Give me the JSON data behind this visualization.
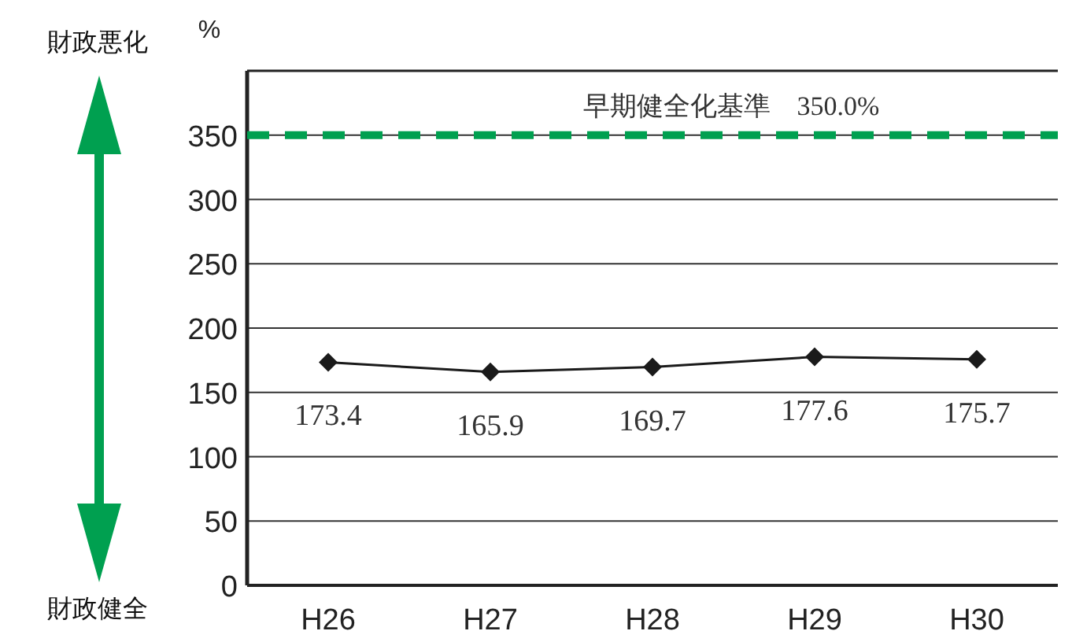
{
  "chart_data": {
    "type": "line",
    "ylabel": "%",
    "categories": [
      "H26",
      "H27",
      "H28",
      "H29",
      "H30"
    ],
    "series": [
      {
        "color": "#1a1a1a",
        "values": [
          173.4,
          165.9,
          169.7,
          177.6,
          175.7
        ]
      }
    ],
    "ylim": [
      0,
      400
    ],
    "yticks": [
      0,
      50,
      100,
      150,
      200,
      250,
      300,
      350
    ],
    "grid": "y",
    "marker": "diamond",
    "line_style": "solid",
    "data_labels": true,
    "ref_lines": [
      {
        "axis": "y",
        "value": 350,
        "label": "早期健全化基準　350.0%",
        "color": "#00a050",
        "line_style": "dashed"
      }
    ],
    "annotations": [
      "財政悪化",
      "財政健全"
    ]
  }
}
